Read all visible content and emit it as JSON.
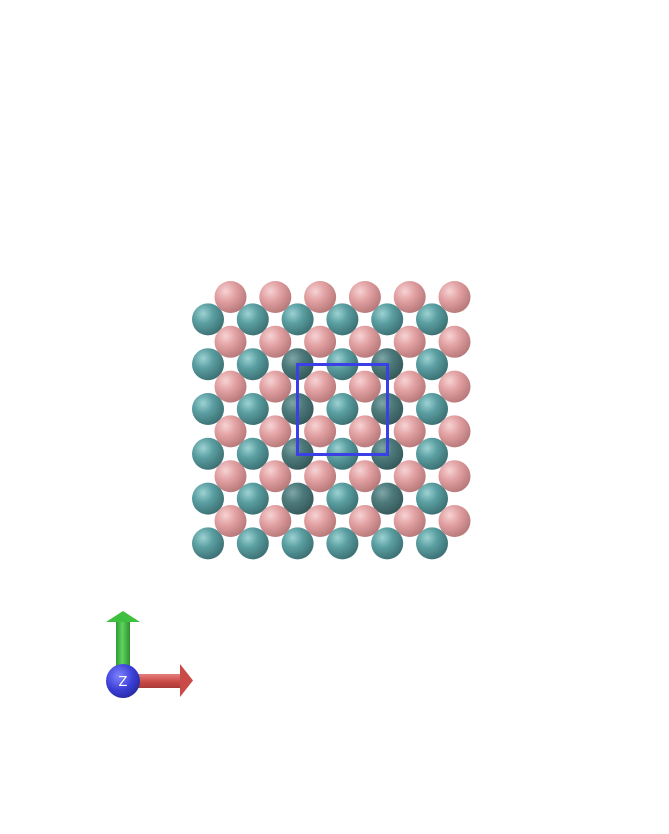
{
  "scene": {
    "lattice": {
      "rows": 12,
      "columns": 6,
      "colors": {
        "pink": "#e2a1a3",
        "teal": "#5b9fa2",
        "cell_box": "#3a3fe6"
      }
    }
  },
  "axes_gizmo": {
    "z_label": "Z",
    "colors": {
      "x": "#d9534f",
      "y": "#3fbf3f",
      "z": "#3b3fd6"
    }
  }
}
